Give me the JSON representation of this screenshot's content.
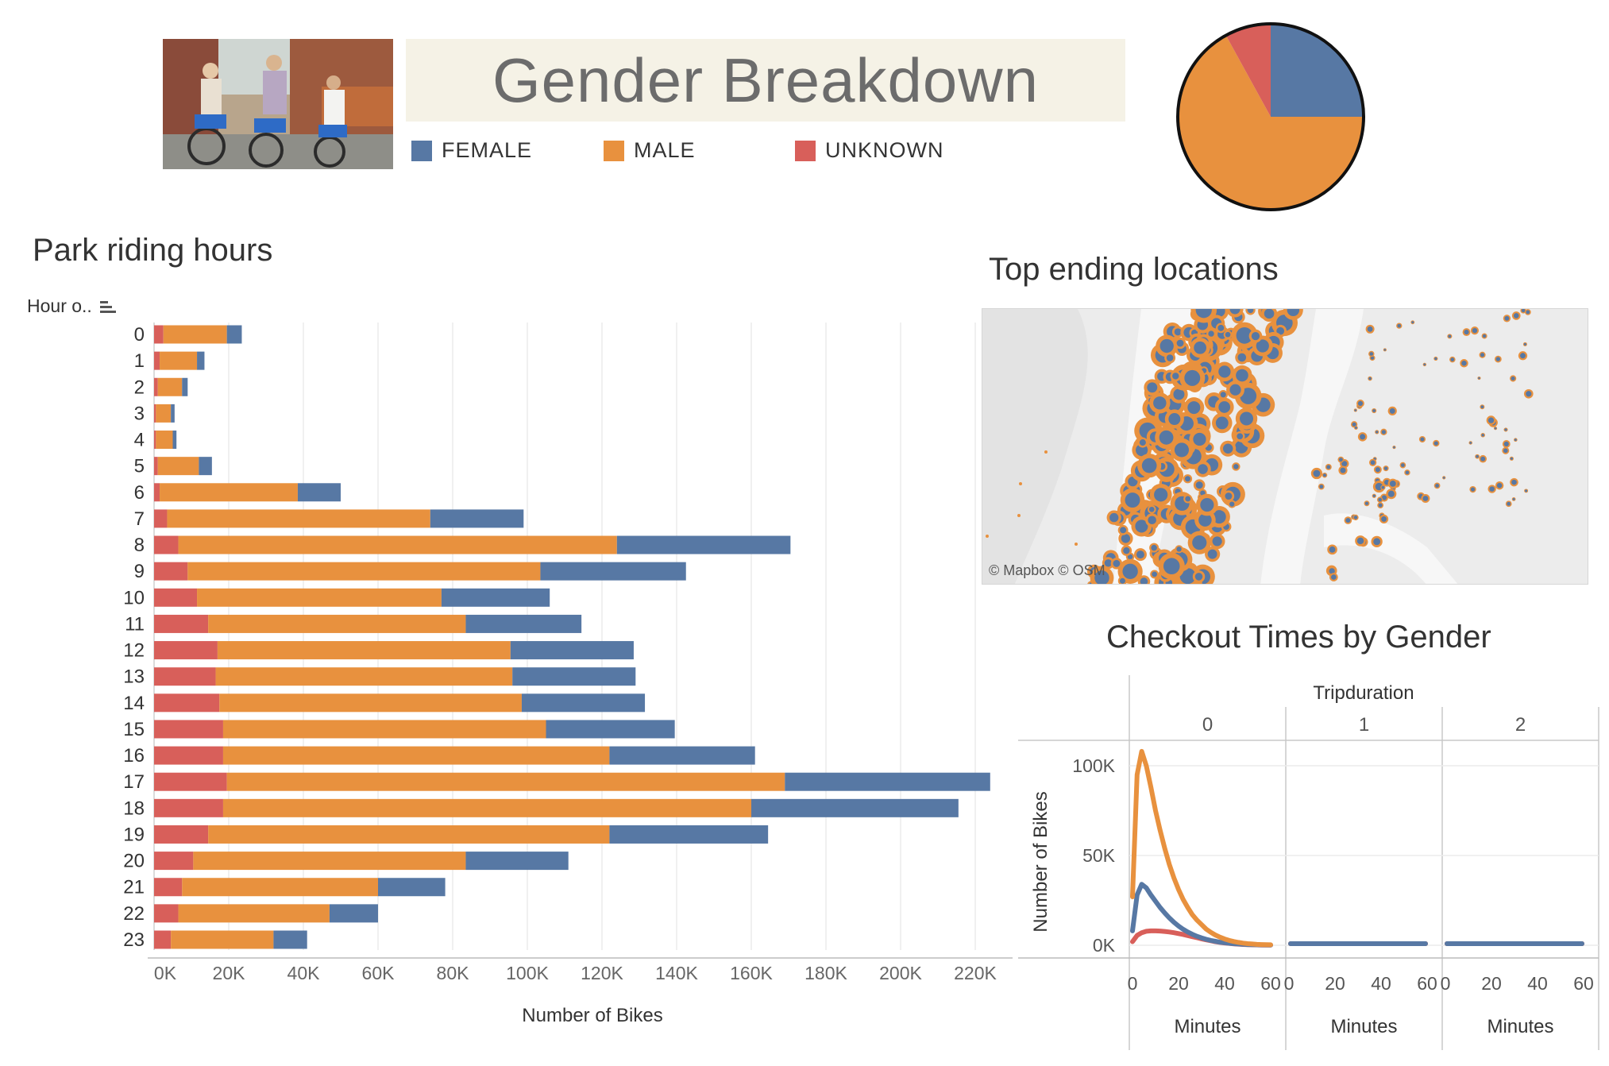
{
  "header": {
    "title": "Gender Breakdown",
    "legend": [
      {
        "label": "FEMALE",
        "color": "#5778a4"
      },
      {
        "label": "MALE",
        "color": "#e8913e"
      },
      {
        "label": "UNKNOWN",
        "color": "#d85f5a"
      }
    ]
  },
  "sections": {
    "park_riding_hours": "Park riding hours",
    "top_ending_locations": "Top ending locations",
    "checkout_times": "Checkout Times by Gender"
  },
  "map": {
    "credit": "© Mapbox  © OSM"
  },
  "colors": {
    "female": "#5778a4",
    "male": "#e8913e",
    "unknown": "#d85f5a"
  },
  "chart_data": [
    {
      "type": "pie",
      "slices": [
        {
          "label": "FEMALE",
          "value": 25,
          "color": "#5778a4"
        },
        {
          "label": "MALE",
          "value": 67,
          "color": "#e8913e"
        },
        {
          "label": "UNKNOWN",
          "value": 8,
          "color": "#d85f5a"
        }
      ]
    },
    {
      "type": "bar",
      "orientation": "horizontal",
      "stacked": true,
      "title": "Park riding hours",
      "ylabel": "Hour o..",
      "xlabel": "Number of Bikes",
      "xlim": [
        0,
        225000
      ],
      "x_ticks": [
        "0K",
        "20K",
        "40K",
        "60K",
        "80K",
        "100K",
        "120K",
        "140K",
        "160K",
        "180K",
        "200K",
        "220K"
      ],
      "categories": [
        "0",
        "1",
        "2",
        "3",
        "4",
        "5",
        "6",
        "7",
        "8",
        "9",
        "10",
        "11",
        "12",
        "13",
        "14",
        "15",
        "16",
        "17",
        "18",
        "19",
        "20",
        "21",
        "22",
        "23"
      ],
      "series": [
        {
          "name": "UNKNOWN",
          "color": "#d85f5a",
          "values": [
            2500,
            1500,
            1000,
            500,
            500,
            1000,
            1500,
            3500,
            6500,
            9000,
            11500,
            14500,
            17000,
            16500,
            17500,
            18500,
            18500,
            19500,
            18500,
            14500,
            10500,
            7500,
            6500,
            4500
          ]
        },
        {
          "name": "MALE",
          "color": "#e8913e",
          "values": [
            17000,
            10000,
            6500,
            4000,
            4500,
            11000,
            37000,
            70500,
            117500,
            94500,
            65500,
            69000,
            78500,
            79500,
            81000,
            86500,
            103500,
            149500,
            141500,
            107500,
            73000,
            52500,
            40500,
            27500
          ]
        },
        {
          "name": "FEMALE",
          "color": "#5778a4",
          "values": [
            4000,
            2000,
            1500,
            1000,
            1000,
            3500,
            11500,
            25000,
            46500,
            39000,
            29000,
            31000,
            33000,
            33000,
            33000,
            34500,
            39000,
            55000,
            55500,
            42500,
            27500,
            18000,
            13000,
            9000
          ]
        }
      ]
    },
    {
      "type": "line",
      "title": "Checkout Times by Gender",
      "column_header": "Tripduration",
      "panels": [
        "0",
        "1",
        "2"
      ],
      "xlabel": "Minutes",
      "ylabel": "Number of Bikes",
      "x_ticks": [
        0,
        20,
        40,
        60
      ],
      "y_ticks": [
        "0K",
        "50K",
        "100K"
      ],
      "ylim": [
        0,
        115000
      ],
      "xlim": [
        0,
        60
      ],
      "x": [
        0,
        2,
        4,
        6,
        8,
        10,
        12,
        14,
        16,
        18,
        20,
        22,
        24,
        26,
        28,
        30,
        32,
        34,
        36,
        38,
        40,
        42,
        44,
        46,
        48,
        50,
        52,
        54,
        56,
        58,
        60
      ],
      "series": [
        {
          "name": "MALE",
          "color": "#e8913e",
          "values": [
            27000,
            95000,
            108000,
            100000,
            88000,
            75000,
            64000,
            54000,
            45000,
            37500,
            31000,
            25500,
            21000,
            17000,
            14000,
            11500,
            9000,
            7200,
            5700,
            4500,
            3500,
            2700,
            2100,
            1600,
            1200,
            900,
            700,
            500,
            400,
            300,
            250
          ]
        },
        {
          "name": "FEMALE",
          "color": "#5778a4",
          "values": [
            8000,
            28000,
            34000,
            32000,
            28000,
            24500,
            21000,
            18000,
            15200,
            12800,
            10700,
            8900,
            7400,
            6100,
            5000,
            4100,
            3300,
            2700,
            2200,
            1700,
            1400,
            1100,
            900,
            700,
            550,
            420,
            330,
            250,
            200,
            160,
            130
          ]
        },
        {
          "name": "UNKNOWN",
          "color": "#d85f5a",
          "values": [
            2000,
            5500,
            7000,
            7800,
            8000,
            8000,
            7900,
            7700,
            7400,
            7000,
            6500,
            6000,
            5400,
            4800,
            4200,
            3600,
            3000,
            2500,
            2000,
            1600,
            1300,
            1000,
            800,
            600,
            450,
            350,
            260,
            200,
            150,
            110,
            80
          ]
        }
      ]
    }
  ]
}
